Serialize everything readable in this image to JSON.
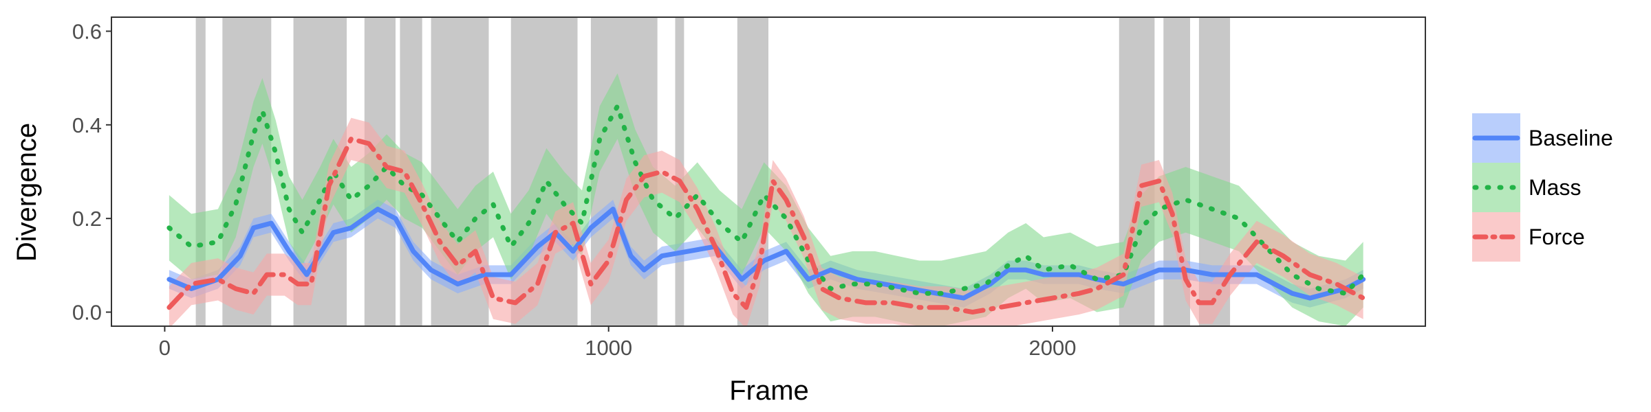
{
  "chart_data": {
    "type": "line",
    "title": "",
    "xlabel": "Frame",
    "ylabel": "Divergence",
    "xlim": [
      -120,
      2840
    ],
    "ylim": [
      -0.03,
      0.63
    ],
    "x_ticks": [
      0,
      1000,
      2000
    ],
    "x_tick_labels": [
      "0",
      "1000",
      "2000"
    ],
    "y_ticks": [
      0.0,
      0.2,
      0.4,
      0.6
    ],
    "y_tick_labels": [
      "0.0",
      "0.2",
      "0.4",
      "0.6"
    ],
    "grid": false,
    "legend_position": "right",
    "shaded_intervals": [
      [
        70,
        92
      ],
      [
        130,
        240
      ],
      [
        290,
        410
      ],
      [
        450,
        520
      ],
      [
        530,
        580
      ],
      [
        600,
        730
      ],
      [
        780,
        930
      ],
      [
        960,
        1110
      ],
      [
        1150,
        1170
      ],
      [
        1290,
        1360
      ],
      [
        2150,
        2230
      ],
      [
        2250,
        2310
      ],
      [
        2330,
        2400
      ]
    ],
    "shade_color": "#c8c8c8",
    "series": [
      {
        "name": "Baseline",
        "color": "#5285f8",
        "line_style": "solid",
        "x": [
          10,
          60,
          120,
          170,
          200,
          240,
          280,
          320,
          380,
          420,
          480,
          520,
          560,
          600,
          660,
          720,
          780,
          840,
          880,
          920,
          960,
          1010,
          1050,
          1080,
          1120,
          1180,
          1240,
          1300,
          1350,
          1400,
          1450,
          1500,
          1560,
          1620,
          1680,
          1740,
          1800,
          1860,
          1900,
          1940,
          1980,
          2020,
          2060,
          2100,
          2160,
          2240,
          2300,
          2360,
          2420,
          2460,
          2500,
          2540,
          2580,
          2620,
          2660,
          2700
        ],
        "y": [
          0.07,
          0.05,
          0.07,
          0.12,
          0.18,
          0.19,
          0.13,
          0.08,
          0.17,
          0.18,
          0.22,
          0.2,
          0.13,
          0.09,
          0.06,
          0.08,
          0.08,
          0.14,
          0.17,
          0.13,
          0.18,
          0.22,
          0.12,
          0.09,
          0.12,
          0.13,
          0.14,
          0.07,
          0.11,
          0.13,
          0.07,
          0.09,
          0.07,
          0.06,
          0.05,
          0.04,
          0.03,
          0.06,
          0.09,
          0.09,
          0.08,
          0.08,
          0.08,
          0.07,
          0.06,
          0.09,
          0.09,
          0.08,
          0.08,
          0.08,
          0.06,
          0.04,
          0.03,
          0.04,
          0.05,
          0.07
        ],
        "band_halfwidth": 0.02,
        "band_color": "#8aaefa"
      },
      {
        "name": "Mass",
        "color": "#22b347",
        "line_style": "dotted",
        "x": [
          10,
          60,
          120,
          160,
          200,
          220,
          250,
          280,
          310,
          350,
          380,
          420,
          460,
          500,
          540,
          580,
          620,
          660,
          700,
          740,
          780,
          820,
          860,
          900,
          940,
          980,
          1020,
          1060,
          1100,
          1150,
          1200,
          1250,
          1300,
          1350,
          1400,
          1450,
          1500,
          1550,
          1600,
          1650,
          1700,
          1750,
          1800,
          1850,
          1900,
          1940,
          1980,
          2040,
          2100,
          2160,
          2200,
          2240,
          2300,
          2360,
          2420,
          2480,
          2540,
          2600,
          2660,
          2700
        ],
        "y": [
          0.18,
          0.14,
          0.15,
          0.23,
          0.38,
          0.43,
          0.34,
          0.22,
          0.17,
          0.24,
          0.3,
          0.24,
          0.27,
          0.31,
          0.27,
          0.25,
          0.2,
          0.15,
          0.2,
          0.23,
          0.14,
          0.19,
          0.28,
          0.23,
          0.19,
          0.37,
          0.44,
          0.32,
          0.24,
          0.2,
          0.25,
          0.19,
          0.15,
          0.25,
          0.2,
          0.11,
          0.05,
          0.06,
          0.06,
          0.05,
          0.04,
          0.04,
          0.05,
          0.06,
          0.1,
          0.12,
          0.09,
          0.1,
          0.07,
          0.08,
          0.18,
          0.22,
          0.24,
          0.22,
          0.2,
          0.14,
          0.08,
          0.05,
          0.04,
          0.08
        ],
        "band_halfwidth": 0.07,
        "band_color": "#86d98f"
      },
      {
        "name": "Force",
        "color": "#ee5a5a",
        "line_style": "dotdash",
        "x": [
          10,
          60,
          120,
          160,
          200,
          230,
          270,
          300,
          330,
          370,
          420,
          460,
          500,
          540,
          580,
          620,
          660,
          700,
          740,
          790,
          840,
          880,
          920,
          960,
          1000,
          1040,
          1080,
          1120,
          1160,
          1200,
          1240,
          1280,
          1310,
          1340,
          1370,
          1400,
          1440,
          1480,
          1520,
          1580,
          1640,
          1700,
          1760,
          1820,
          1880,
          1940,
          2000,
          2060,
          2100,
          2160,
          2200,
          2240,
          2270,
          2300,
          2330,
          2360,
          2400,
          2460,
          2520,
          2580,
          2640,
          2700
        ],
        "y": [
          0.01,
          0.06,
          0.07,
          0.05,
          0.04,
          0.08,
          0.08,
          0.06,
          0.06,
          0.27,
          0.37,
          0.36,
          0.31,
          0.3,
          0.23,
          0.15,
          0.1,
          0.13,
          0.03,
          0.02,
          0.06,
          0.17,
          0.19,
          0.06,
          0.11,
          0.24,
          0.29,
          0.3,
          0.28,
          0.22,
          0.14,
          0.04,
          0.01,
          0.1,
          0.28,
          0.24,
          0.16,
          0.05,
          0.03,
          0.02,
          0.02,
          0.01,
          0.01,
          0.0,
          0.01,
          0.02,
          0.03,
          0.04,
          0.05,
          0.08,
          0.27,
          0.28,
          0.21,
          0.07,
          0.02,
          0.02,
          0.08,
          0.15,
          0.12,
          0.08,
          0.06,
          0.03
        ],
        "band_halfwidth": 0.045,
        "band_color": "#f6a6a6"
      }
    ]
  }
}
